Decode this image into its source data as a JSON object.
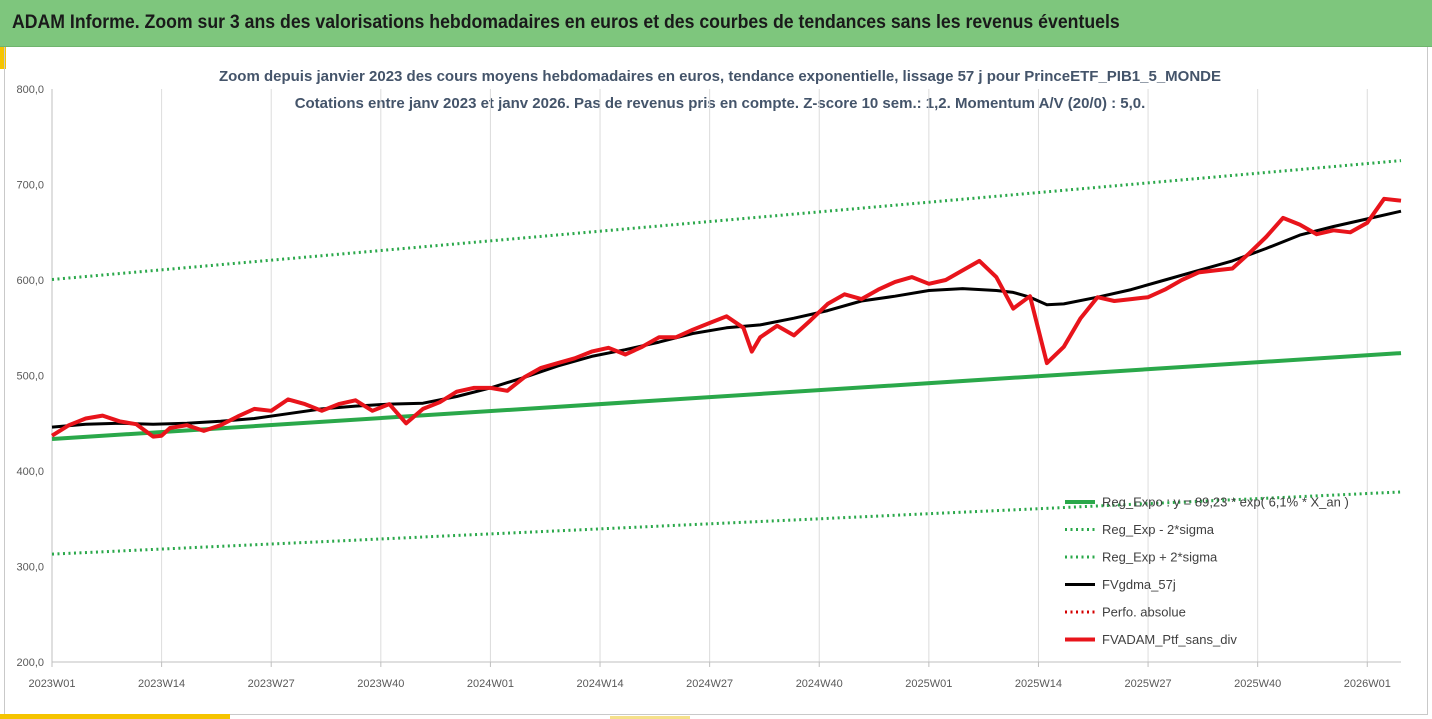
{
  "header": {
    "title": "ADAM Informe. Zoom sur 3 ans des valorisations hebdomadaires en euros et des courbes de tendances sans les revenus éventuels"
  },
  "colors": {
    "header_bg": "#7ec67d",
    "accent": "#f5c400",
    "reg_expo": "#2aa84a",
    "sigma": "#2aa84a",
    "fvgdma": "#000000",
    "perfo": "#d40000",
    "fvadam": "#e8141b"
  },
  "chart_data": {
    "type": "line",
    "title_line1": "Zoom depuis janvier 2023 des cours moyens hebdomadaires  en euros, tendance exponentielle, lissage 57 j pour PrinceETF_PIB1_5_MONDE",
    "title_line2": "Cotations entre janv 2023 et janv 2026. Pas de revenus pris en compte. Z-score 10 sem.: 1,2. Momentum  A/V (20/0) : 5,0.",
    "ylim": [
      200,
      800
    ],
    "yticks": [
      200,
      300,
      400,
      500,
      600,
      700,
      800
    ],
    "ytick_labels": [
      "200,0",
      "300,0",
      "400,0",
      "500,0",
      "600,0",
      "700,0",
      "800,0"
    ],
    "xlim": [
      0,
      160
    ],
    "xticks": [
      0,
      13,
      26,
      39,
      52,
      65,
      78,
      91,
      104,
      117,
      130,
      143,
      156
    ],
    "xtick_labels": [
      "2023W01",
      "2023W14",
      "2023W27",
      "2023W40",
      "2024W01",
      "2024W14",
      "2024W27",
      "2024W40",
      "2025W01",
      "2025W14",
      "2025W27",
      "2025W40",
      "2026W01"
    ],
    "grid": "vertical",
    "legend_position": "bottom-right",
    "series": [
      {
        "name": "Reg_Expo : y = 89,23 * exp( 6,1% * X_an )",
        "style": "solid",
        "width": 4,
        "x": [
          0,
          160
        ],
        "y": [
          433.5,
          523.5
        ]
      },
      {
        "name": "Reg_Exp - 2*sigma",
        "style": "dotted",
        "width": 3,
        "x": [
          0,
          160
        ],
        "y": [
          313,
          378
        ]
      },
      {
        "name": "Reg_Exp + 2*sigma",
        "style": "dotted",
        "width": 3,
        "x": [
          0,
          160
        ],
        "y": [
          600.5,
          725
        ]
      },
      {
        "name": "FVgdma_57j",
        "style": "solid",
        "width": 3,
        "x": [
          0,
          4,
          8,
          12,
          16,
          20,
          24,
          28,
          32,
          36,
          40,
          44,
          48,
          52,
          56,
          60,
          64,
          68,
          72,
          76,
          80,
          84,
          88,
          92,
          96,
          100,
          104,
          108,
          112,
          114,
          116,
          118,
          120,
          124,
          128,
          132,
          136,
          140,
          144,
          148,
          152,
          156,
          160
        ],
        "y": [
          446,
          449,
          450,
          449,
          450,
          452,
          455,
          460,
          465,
          468,
          470,
          471,
          478,
          487,
          498,
          510,
          520,
          527,
          535,
          544,
          550,
          553,
          560,
          568,
          578,
          583,
          589,
          591,
          589,
          587,
          582,
          574,
          575,
          582,
          590,
          600,
          610,
          620,
          633,
          647,
          656,
          664,
          672
        ]
      },
      {
        "name": "Perfo. absolue",
        "style": "dotted",
        "width": 3,
        "x": [],
        "y": []
      },
      {
        "name": "FVADAM_Ptf_sans_div",
        "style": "solid",
        "width": 4,
        "x": [
          0,
          2,
          4,
          6,
          8,
          10,
          12,
          13,
          14,
          16,
          18,
          20,
          22,
          24,
          26,
          28,
          30,
          32,
          34,
          36,
          38,
          40,
          42,
          44,
          46,
          48,
          50,
          52,
          54,
          56,
          58,
          60,
          62,
          64,
          66,
          68,
          70,
          72,
          74,
          76,
          78,
          80,
          82,
          83,
          84,
          86,
          88,
          90,
          92,
          94,
          96,
          98,
          100,
          102,
          104,
          106,
          108,
          110,
          112,
          114,
          116,
          118,
          120,
          122,
          124,
          126,
          128,
          130,
          132,
          134,
          136,
          138,
          140,
          142,
          144,
          146,
          148,
          150,
          152,
          154,
          156,
          158,
          160
        ],
        "y": [
          437,
          448,
          455,
          458,
          452,
          449,
          436,
          437,
          445,
          448,
          442,
          448,
          457,
          465,
          463,
          475,
          470,
          463,
          470,
          474,
          463,
          470,
          450,
          465,
          472,
          483,
          487,
          487,
          484,
          498,
          508,
          513,
          518,
          525,
          529,
          522,
          530,
          540,
          540,
          548,
          555,
          562,
          550,
          525,
          540,
          552,
          542,
          558,
          575,
          585,
          580,
          590,
          598,
          603,
          596,
          600,
          610,
          620,
          603,
          570,
          583,
          513,
          530,
          560,
          582,
          578,
          580,
          582,
          590,
          600,
          608,
          610,
          612,
          628,
          645,
          665,
          658,
          648,
          652,
          650,
          660,
          685,
          683
        ]
      }
    ]
  }
}
